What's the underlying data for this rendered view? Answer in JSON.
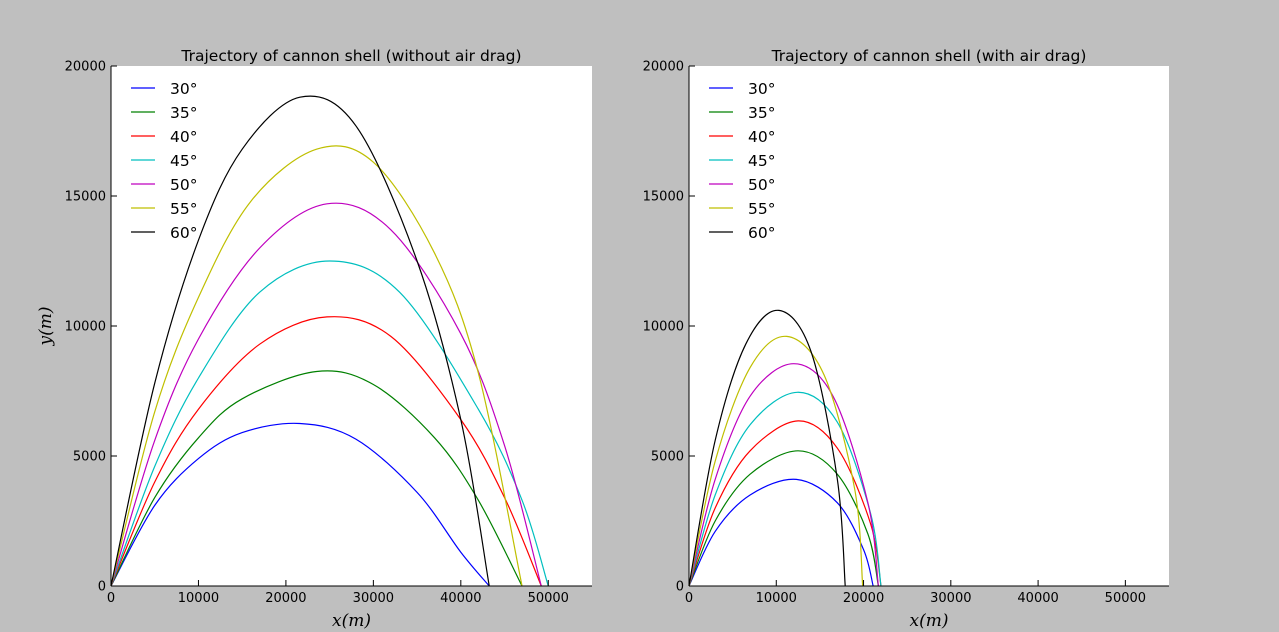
{
  "figure": {
    "background": "#bfbfbf",
    "plot_background": "#ffffff"
  },
  "chart_data": [
    {
      "type": "line",
      "title": "Trajectory of cannon shell (without air drag)",
      "xlabel": "x(m)",
      "ylabel": "y(m)",
      "xlim": [
        0,
        55000
      ],
      "ylim": [
        0,
        20000
      ],
      "xticks": [
        0,
        10000,
        20000,
        30000,
        40000,
        50000
      ],
      "yticks": [
        0,
        5000,
        10000,
        15000,
        20000
      ],
      "grid": false,
      "legend_position": "top-left",
      "series": [
        {
          "name": "30°",
          "color": "#0000ff",
          "x": [
            0,
            5000,
            10000,
            15000,
            21600,
            28000,
            35000,
            40000,
            43250
          ],
          "y": [
            0,
            3100,
            4900,
            5900,
            6250,
            5650,
            3600,
            1300,
            0
          ]
        },
        {
          "name": "35°",
          "color": "#008000",
          "x": [
            0,
            5000,
            10000,
            15000,
            23500,
            30000,
            37000,
            42000,
            47000
          ],
          "y": [
            0,
            3400,
            5700,
            7200,
            8250,
            7750,
            5700,
            3300,
            0
          ]
        },
        {
          "name": "40°",
          "color": "#ff0000",
          "x": [
            0,
            5000,
            10000,
            17000,
            24700,
            32000,
            40000,
            45000,
            49200
          ],
          "y": [
            0,
            4000,
            6800,
            9300,
            10350,
            9600,
            6400,
            3400,
            0
          ]
        },
        {
          "name": "45°",
          "color": "#00bfbf",
          "x": [
            0,
            5000,
            10000,
            17000,
            25000,
            33000,
            42000,
            47000,
            50000
          ],
          "y": [
            0,
            4600,
            8000,
            11300,
            12500,
            11300,
            6800,
            3300,
            0
          ]
        },
        {
          "name": "50°",
          "color": "#bf00bf",
          "x": [
            0,
            5000,
            10000,
            17000,
            24700,
            32000,
            40000,
            45000,
            49200
          ],
          "y": [
            0,
            5600,
            9500,
            13000,
            14700,
            13700,
            9700,
            5400,
            0
          ]
        },
        {
          "name": "55°",
          "color": "#bfbf00",
          "x": [
            0,
            5000,
            10000,
            16000,
            23500,
            30000,
            37000,
            42000,
            47000
          ],
          "y": [
            0,
            6700,
            11100,
            14800,
            16800,
            16300,
            12800,
            8200,
            0
          ]
        },
        {
          "name": "60°",
          "color": "#000000",
          "x": [
            0,
            5000,
            10000,
            15000,
            21600,
            28000,
            35000,
            40000,
            43250
          ],
          "y": [
            0,
            7800,
            13300,
            16800,
            18800,
            17700,
            12500,
            6400,
            0
          ]
        }
      ]
    },
    {
      "type": "line",
      "title": "Trajectory of cannon shell (with air drag)",
      "xlabel": "x(m)",
      "ylabel": "",
      "xlim": [
        0,
        55000
      ],
      "ylim": [
        0,
        20000
      ],
      "xticks": [
        0,
        10000,
        20000,
        30000,
        40000,
        50000
      ],
      "yticks": [
        0,
        5000,
        10000,
        15000,
        20000
      ],
      "grid": false,
      "legend_position": "top-left",
      "series": [
        {
          "name": "30°",
          "color": "#0000ff",
          "x": [
            0,
            3000,
            7000,
            12300,
            17000,
            20000,
            21100
          ],
          "y": [
            0,
            2100,
            3500,
            4100,
            3200,
            1400,
            0
          ]
        },
        {
          "name": "35°",
          "color": "#008000",
          "x": [
            0,
            3000,
            7000,
            12500,
            17000,
            20500,
            21700
          ],
          "y": [
            0,
            2500,
            4300,
            5200,
            4300,
            2000,
            0
          ]
        },
        {
          "name": "40°",
          "color": "#ff0000",
          "x": [
            0,
            3000,
            7000,
            12500,
            17000,
            20800,
            22000
          ],
          "y": [
            0,
            3000,
            5200,
            6350,
            5300,
            2400,
            0
          ]
        },
        {
          "name": "45°",
          "color": "#00bfbf",
          "x": [
            0,
            3000,
            7000,
            12400,
            17000,
            20800,
            22000
          ],
          "y": [
            0,
            3500,
            6200,
            7450,
            6300,
            2800,
            0
          ]
        },
        {
          "name": "50°",
          "color": "#bf00bf",
          "x": [
            0,
            3000,
            7000,
            12000,
            16500,
            20500,
            21700
          ],
          "y": [
            0,
            4100,
            7300,
            8550,
            7300,
            3200,
            0
          ]
        },
        {
          "name": "55°",
          "color": "#bfbf00",
          "x": [
            0,
            3000,
            7000,
            11200,
            15500,
            19000,
            19900
          ],
          "y": [
            0,
            4800,
            8400,
            9600,
            8100,
            3700,
            0
          ]
        },
        {
          "name": "60°",
          "color": "#000000",
          "x": [
            0,
            3000,
            6500,
            10300,
            14000,
            17000,
            17900
          ],
          "y": [
            0,
            5600,
            9300,
            10600,
            9000,
            4100,
            0
          ]
        }
      ]
    }
  ]
}
